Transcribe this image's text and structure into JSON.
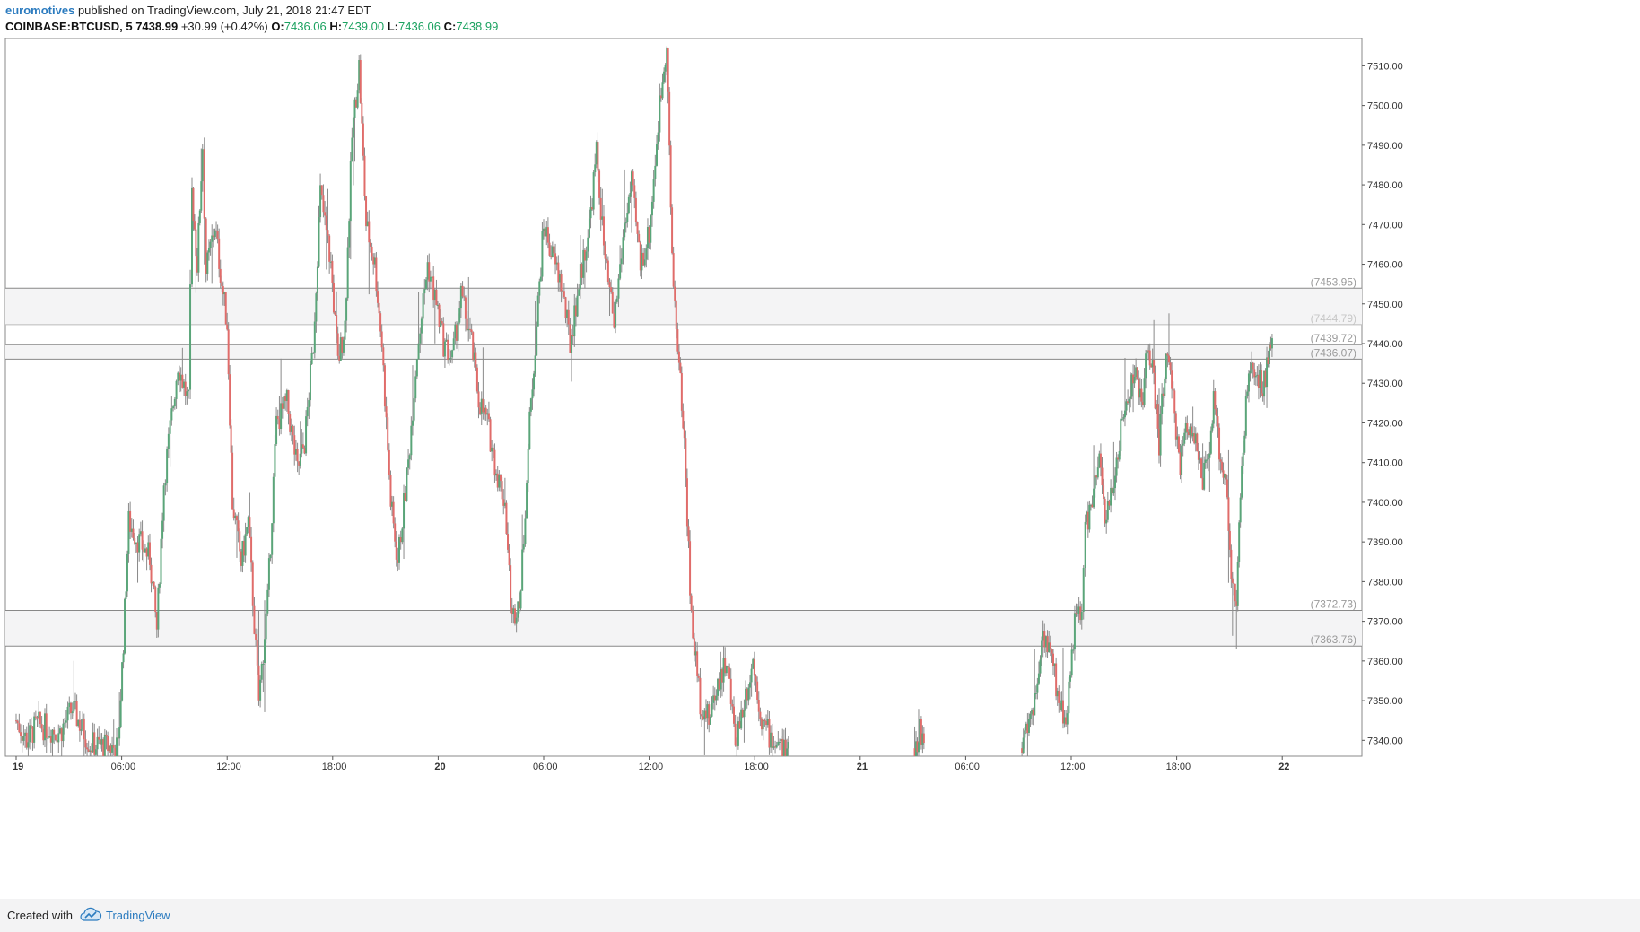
{
  "header": {
    "author": "euromotives",
    "published": "published on TradingView.com, July 21, 2018 21:47 EDT",
    "symbol": "COINBASE:BTCUSD, 5",
    "last": "7438.99",
    "change": "+30.99 (+0.42%)",
    "o_label": "O:",
    "o_value": "7436.06",
    "h_label": "H:",
    "h_value": "7439.00",
    "l_label": "L:",
    "l_value": "7436.06",
    "c_label": "C:",
    "c_value": "7438.99"
  },
  "footer": {
    "created_with": "Created with",
    "brand": "TradingView",
    "icon": "tradingview-cloud-icon"
  },
  "colors": {
    "up": "#5aa579",
    "down": "#e06c6a",
    "zone_fill": "#f4f4f5",
    "zone_line": "#888888",
    "axis_text": "#333333",
    "accent": "#2b7bbf"
  },
  "chart_data": {
    "type": "candlestick",
    "title": "COINBASE:BTCUSD, 5",
    "ylim": [
      7336,
      7518
    ],
    "x_ticks": [
      {
        "label": "19",
        "h": 0
      },
      {
        "label": "06:00",
        "h": 6
      },
      {
        "label": "12:00",
        "h": 12
      },
      {
        "label": "18:00",
        "h": 18
      },
      {
        "label": "20",
        "h": 24
      },
      {
        "label": "06:00",
        "h": 30
      },
      {
        "label": "12:00",
        "h": 36
      },
      {
        "label": "18:00",
        "h": 42
      },
      {
        "label": "21",
        "h": 48
      },
      {
        "label": "06:00",
        "h": 54
      },
      {
        "label": "12:00",
        "h": 60
      },
      {
        "label": "18:00",
        "h": 66
      },
      {
        "label": "22",
        "h": 72
      }
    ],
    "y_ticks": [
      "7340.00",
      "7350.00",
      "7360.00",
      "7370.00",
      "7380.00",
      "7390.00",
      "7400.00",
      "7410.00",
      "7420.00",
      "7430.00",
      "7440.00",
      "7450.00",
      "7460.00",
      "7470.00",
      "7480.00",
      "7490.00",
      "7500.00",
      "7510.00"
    ],
    "zones": [
      {
        "top": 7453.95,
        "bottom": 7444.79,
        "top_label": "(7453.95)",
        "bottom_label": "(7444.79)"
      },
      {
        "top": 7439.72,
        "bottom": 7436.07,
        "top_label": "(7439.72)",
        "bottom_label": "(7436.07)"
      },
      {
        "top": 7372.73,
        "bottom": 7363.76,
        "top_label": "(7372.73)",
        "bottom_label": "(7363.76)"
      }
    ],
    "price_path": [
      [
        0,
        7345
      ],
      [
        0.6,
        7340
      ],
      [
        1.2,
        7344
      ],
      [
        2.5,
        7342
      ],
      [
        3.2,
        7348
      ],
      [
        4.2,
        7339
      ],
      [
        5.8,
        7338
      ],
      [
        6.1,
        7365
      ],
      [
        6.4,
        7395
      ],
      [
        7.0,
        7390
      ],
      [
        7.6,
        7386
      ],
      [
        8.0,
        7368
      ],
      [
        8.4,
        7405
      ],
      [
        9.2,
        7435
      ],
      [
        9.8,
        7425
      ],
      [
        10.0,
        7478
      ],
      [
        10.3,
        7460
      ],
      [
        10.6,
        7490
      ],
      [
        10.8,
        7458
      ],
      [
        11.3,
        7470
      ],
      [
        11.7,
        7455
      ],
      [
        12.0,
        7445
      ],
      [
        12.3,
        7400
      ],
      [
        12.8,
        7385
      ],
      [
        13.2,
        7395
      ],
      [
        13.8,
        7350
      ],
      [
        14.3,
        7375
      ],
      [
        14.8,
        7420
      ],
      [
        15.4,
        7425
      ],
      [
        16.0,
        7408
      ],
      [
        16.4,
        7415
      ],
      [
        16.9,
        7440
      ],
      [
        17.3,
        7478
      ],
      [
        17.9,
        7460
      ],
      [
        18.3,
        7435
      ],
      [
        18.7,
        7445
      ],
      [
        19.1,
        7492
      ],
      [
        19.5,
        7510
      ],
      [
        19.9,
        7470
      ],
      [
        20.4,
        7460
      ],
      [
        20.8,
        7440
      ],
      [
        21.3,
        7400
      ],
      [
        21.7,
        7385
      ],
      [
        22.3,
        7410
      ],
      [
        22.8,
        7438
      ],
      [
        23.4,
        7460
      ],
      [
        23.9,
        7450
      ],
      [
        24.3,
        7440
      ],
      [
        24.8,
        7436
      ],
      [
        25.3,
        7452
      ],
      [
        25.9,
        7440
      ],
      [
        26.3,
        7426
      ],
      [
        26.8,
        7420
      ],
      [
        27.3,
        7408
      ],
      [
        27.8,
        7400
      ],
      [
        28.2,
        7370
      ],
      [
        28.7,
        7378
      ],
      [
        29.2,
        7420
      ],
      [
        29.6,
        7445
      ],
      [
        30.0,
        7470
      ],
      [
        30.5,
        7462
      ],
      [
        31.0,
        7455
      ],
      [
        31.5,
        7440
      ],
      [
        32.0,
        7455
      ],
      [
        32.6,
        7470
      ],
      [
        33.0,
        7488
      ],
      [
        33.5,
        7460
      ],
      [
        34.0,
        7445
      ],
      [
        34.6,
        7470
      ],
      [
        35.0,
        7480
      ],
      [
        35.5,
        7460
      ],
      [
        36.0,
        7468
      ],
      [
        36.6,
        7500
      ],
      [
        37.0,
        7517
      ],
      [
        37.3,
        7460
      ],
      [
        37.7,
        7435
      ],
      [
        38.0,
        7415
      ],
      [
        38.4,
        7370
      ],
      [
        38.9,
        7350
      ],
      [
        39.4,
        7345
      ],
      [
        39.9,
        7355
      ],
      [
        40.4,
        7360
      ],
      [
        40.9,
        7340
      ],
      [
        41.4,
        7350
      ],
      [
        41.9,
        7360
      ],
      [
        42.4,
        7345
      ],
      [
        43.0,
        7340
      ],
      [
        43.5,
        7338
      ],
      [
        44.0,
        7336
      ]
    ],
    "price_path_2": [
      [
        51.1,
        7338
      ],
      [
        51.4,
        7343
      ],
      [
        51.7,
        7338
      ]
    ],
    "price_path_3": [
      [
        57.2,
        7338
      ],
      [
        57.6,
        7345
      ],
      [
        58.0,
        7352
      ],
      [
        58.4,
        7368
      ],
      [
        58.9,
        7360
      ],
      [
        59.3,
        7350
      ],
      [
        59.7,
        7345
      ],
      [
        60.2,
        7370
      ],
      [
        60.6,
        7372
      ],
      [
        60.8,
        7394
      ],
      [
        61.2,
        7400
      ],
      [
        61.6,
        7410
      ],
      [
        62.0,
        7395
      ],
      [
        62.5,
        7408
      ],
      [
        62.9,
        7420
      ],
      [
        63.3,
        7428
      ],
      [
        63.6,
        7433
      ],
      [
        64.0,
        7425
      ],
      [
        64.4,
        7440
      ],
      [
        64.7,
        7430
      ],
      [
        65.0,
        7415
      ],
      [
        65.4,
        7438
      ],
      [
        65.8,
        7425
      ],
      [
        66.2,
        7410
      ],
      [
        66.6,
        7420
      ],
      [
        67.0,
        7418
      ],
      [
        67.4,
        7405
      ],
      [
        67.8,
        7410
      ],
      [
        68.1,
        7425
      ],
      [
        68.5,
        7410
      ],
      [
        68.8,
        7408
      ],
      [
        69.1,
        7380
      ],
      [
        69.4,
        7375
      ],
      [
        69.7,
        7410
      ],
      [
        70.1,
        7432
      ],
      [
        70.5,
        7433
      ],
      [
        70.9,
        7428
      ],
      [
        71.2,
        7437
      ],
      [
        71.5,
        7438.99
      ]
    ]
  }
}
